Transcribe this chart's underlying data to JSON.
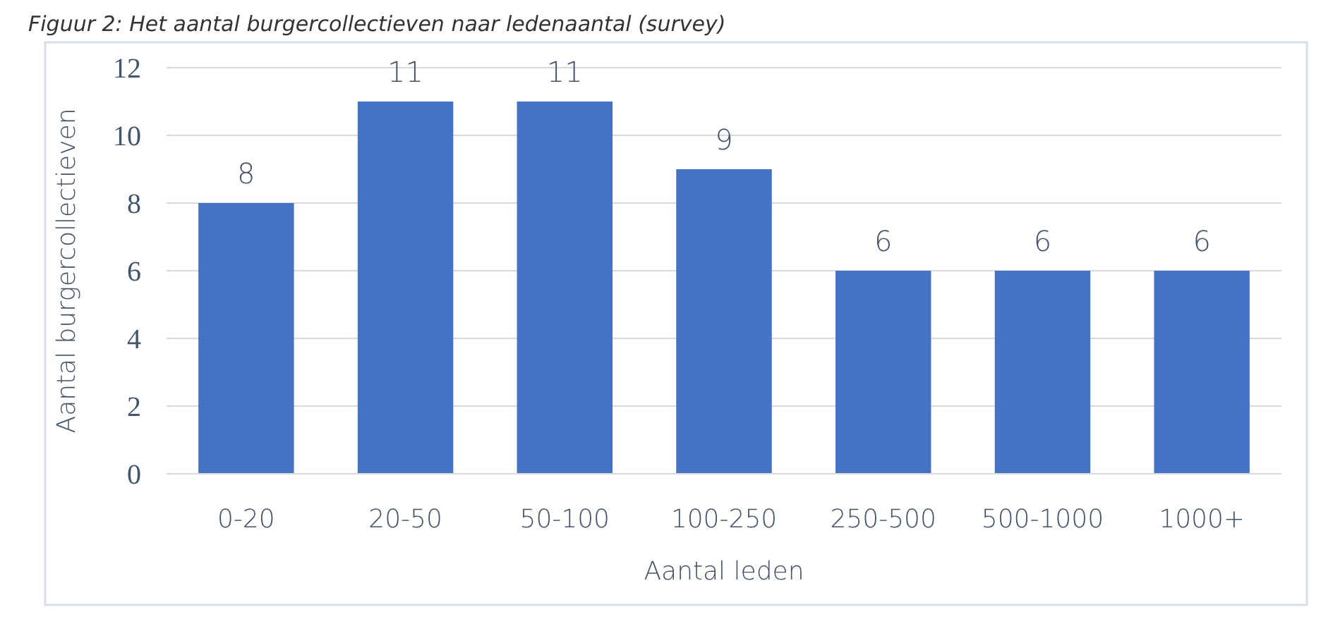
{
  "chart_data": {
    "type": "bar",
    "title": "Figuur 2: Het aantal burgercollectieven naar ledenaantal (survey)",
    "xlabel": "Aantal leden",
    "ylabel": "Aantal burgercollectieven",
    "categories": [
      "0-20",
      "20-50",
      "50-100",
      "100-250",
      "250-500",
      "500-1000",
      "1000+"
    ],
    "values": [
      8,
      11,
      11,
      9,
      6,
      6,
      6
    ],
    "color": "#4472c4",
    "ylim": [
      0,
      12
    ],
    "yticks": [
      0,
      2,
      4,
      6,
      8,
      10,
      12
    ],
    "grid": "y",
    "data_labels": true
  }
}
